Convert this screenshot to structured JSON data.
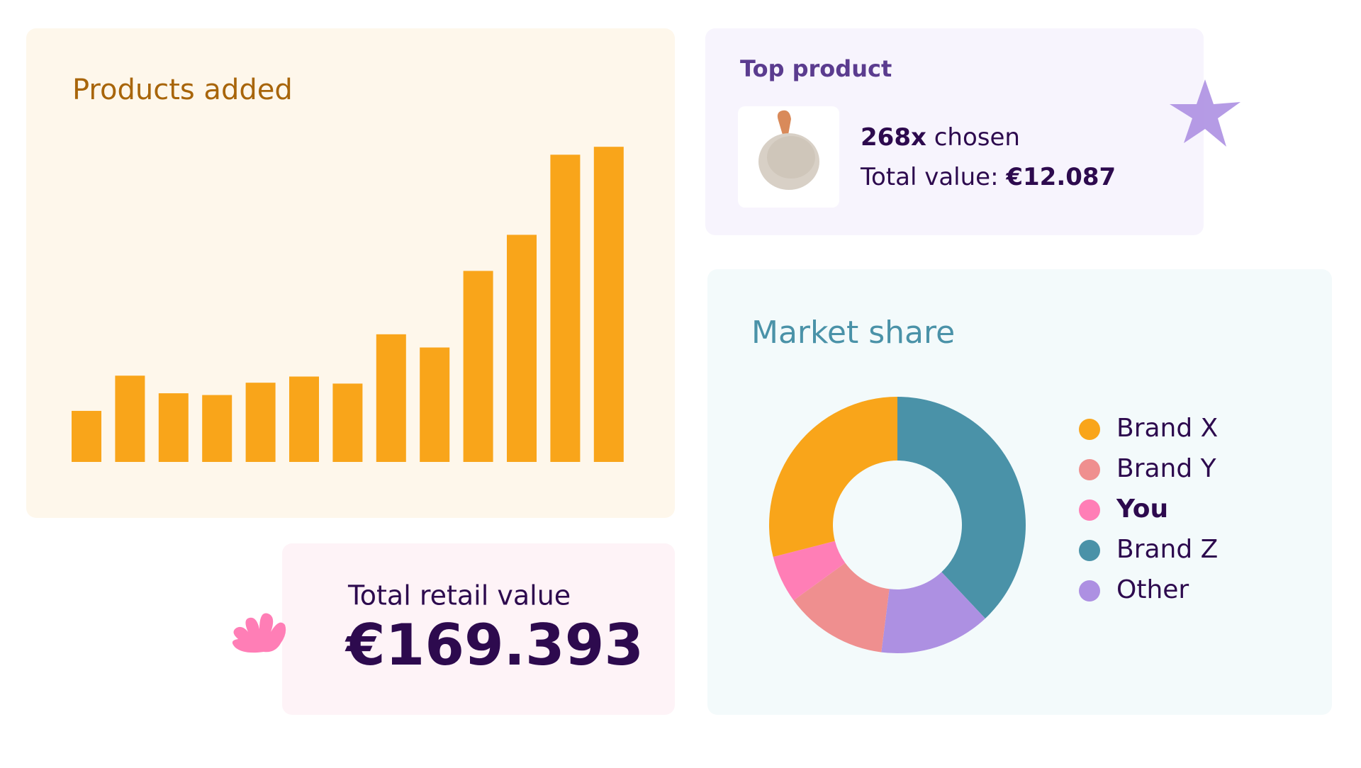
{
  "chart_data": [
    {
      "type": "bar",
      "title": "Products added",
      "categories": [
        null,
        null,
        null,
        null,
        null,
        null,
        null,
        null,
        null,
        null,
        null,
        null,
        null
      ],
      "values": [
        58,
        98,
        78,
        76,
        90,
        97,
        89,
        145,
        130,
        217,
        258,
        349,
        358
      ],
      "color": "#F9A51A",
      "ylim": [
        0,
        400
      ]
    },
    {
      "type": "donut",
      "title": "Market share",
      "categories": [
        "Brand X",
        "Brand Y",
        "You",
        "Brand Z",
        "Other"
      ],
      "values": [
        29,
        13,
        6,
        38,
        14
      ],
      "colors": [
        "#F9A51A",
        "#EF8F8F",
        "#FF7EB6",
        "#4A92A8",
        "#AD90E2"
      ]
    }
  ],
  "top_product": {
    "title": "Top product",
    "count": "268x",
    "count_text": "chosen",
    "value_text": "Total value:",
    "value": "€12.087"
  },
  "total_retail": {
    "label": "Total retail value",
    "value": "€169.393"
  }
}
